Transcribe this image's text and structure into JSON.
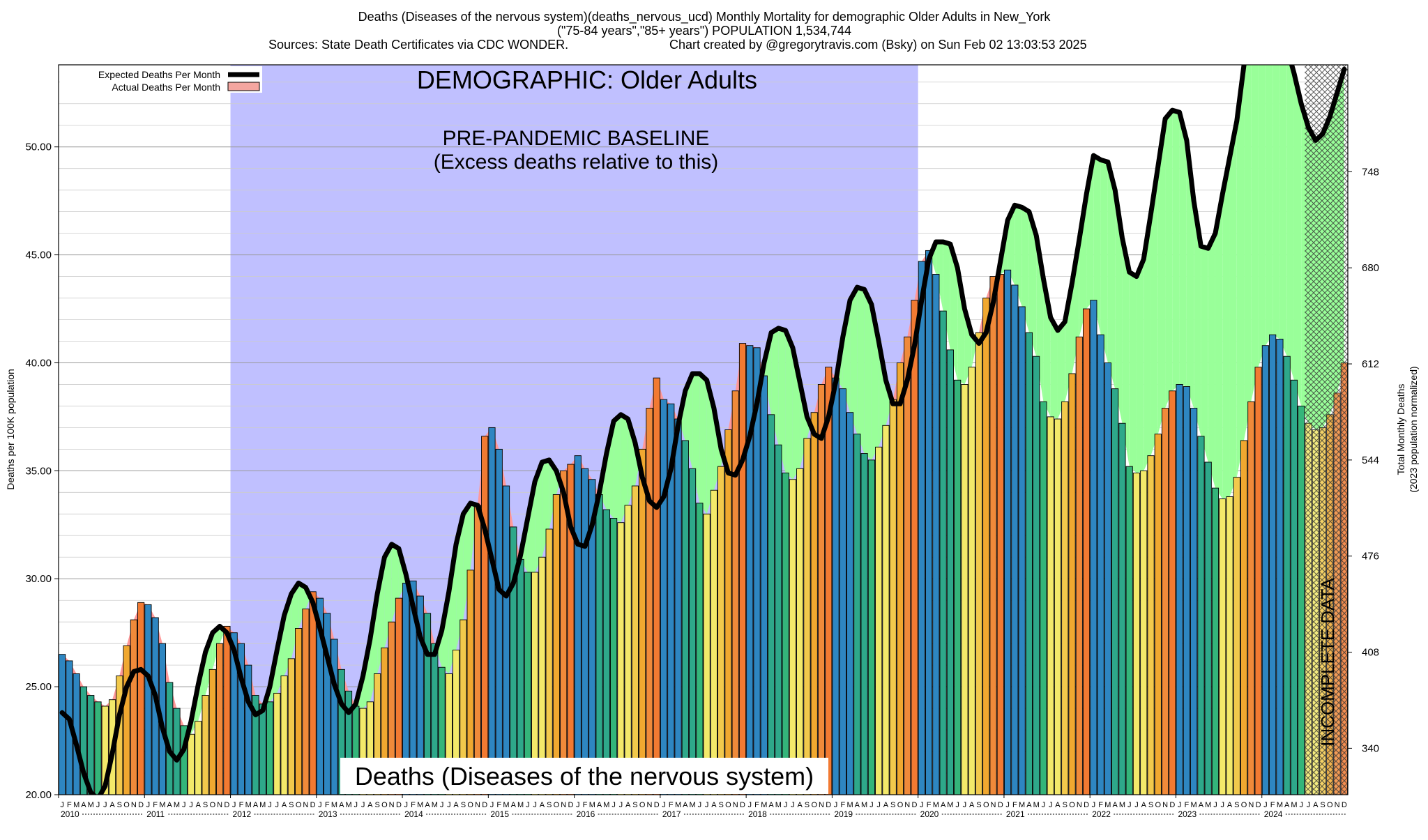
{
  "header": {
    "title_line1": "Deaths (Diseases of the nervous system)(deaths_nervous_ucd) Monthly Mortality for demographic Older Adults in New_York",
    "title_line2": "(\"75-84 years\",\"85+ years\") POPULATION 1,534,744",
    "sources": "Sources: State Death Certificates via CDC WONDER.",
    "credit": "Chart created by @gregorytravis.com (Bsky) on Sun Feb 02 13:03:53 2025"
  },
  "annotations": {
    "demographic": "DEMOGRAPHIC: Older Adults",
    "baseline_line1": "PRE-PANDEMIC BASELINE",
    "baseline_line2": "(Excess deaths relative to this)",
    "cause_label": "Deaths (Diseases of the nervous system)",
    "incomplete": "INCOMPLETE DATA"
  },
  "legend": {
    "expected": "Expected Deaths Per Month",
    "actual": "Actual Deaths Per Month"
  },
  "chart_data": {
    "type": "bar",
    "ylabel": "Deaths per 100K population",
    "y2label_line1": "Total Monthly Deaths",
    "y2label_line2": "(2023 population normalized)",
    "ylim": [
      20.0,
      53.8
    ],
    "yticks": [
      "20.00",
      "25.00",
      "30.00",
      "35.00",
      "40.00",
      "45.00",
      "50.00"
    ],
    "y2ticks": [
      {
        "label": "340",
        "value": 22.15
      },
      {
        "label": "408",
        "value": 26.6
      },
      {
        "label": "476",
        "value": 31.05
      },
      {
        "label": "544",
        "value": 35.5
      },
      {
        "label": "612",
        "value": 39.95
      },
      {
        "label": "680",
        "value": 44.4
      },
      {
        "label": "748",
        "value": 48.85
      }
    ],
    "month_letters": [
      "J",
      "F",
      "M",
      "A",
      "M",
      "J",
      "J",
      "A",
      "S",
      "O",
      "N",
      "D"
    ],
    "years": [
      "2010",
      "2011",
      "2012",
      "2013",
      "2014",
      "2015",
      "2016",
      "2017",
      "2018",
      "2019",
      "2020",
      "2021",
      "2022",
      "2023",
      "2024"
    ],
    "start": "2010-01",
    "baseline_period": {
      "start": "2012-01",
      "end": "2019-12"
    },
    "incomplete_period": {
      "start": "2024-07",
      "end": "2024-12"
    },
    "actual": [
      26.5,
      26.2,
      25.6,
      25.0,
      24.6,
      24.3,
      24.1,
      24.4,
      25.5,
      26.9,
      28.1,
      28.9,
      28.8,
      28.2,
      27.0,
      25.2,
      24.0,
      23.2,
      22.8,
      23.4,
      24.6,
      25.8,
      27.0,
      27.8,
      27.5,
      27.0,
      26.0,
      24.6,
      24.2,
      24.3,
      24.7,
      25.5,
      26.3,
      27.7,
      28.6,
      29.4,
      29.1,
      28.4,
      27.2,
      25.8,
      24.8,
      24.1,
      24.0,
      24.3,
      25.6,
      26.8,
      28.0,
      29.1,
      29.8,
      29.9,
      29.2,
      28.4,
      27.0,
      25.9,
      25.6,
      26.7,
      28.1,
      30.4,
      33.4,
      36.6,
      37.0,
      36.0,
      34.3,
      32.4,
      30.9,
      30.3,
      30.3,
      31.0,
      32.3,
      33.9,
      35.0,
      35.3,
      35.7,
      35.1,
      34.6,
      33.9,
      33.2,
      32.8,
      32.6,
      33.4,
      34.3,
      36.0,
      37.9,
      39.3,
      38.3,
      38.1,
      37.4,
      36.4,
      35.1,
      33.5,
      33.0,
      34.1,
      35.2,
      36.9,
      38.7,
      40.9,
      40.8,
      40.7,
      39.4,
      37.6,
      36.2,
      34.9,
      34.6,
      35.1,
      36.5,
      37.7,
      39.0,
      39.8,
      39.3,
      38.8,
      37.7,
      36.7,
      35.8,
      35.5,
      36.1,
      37.1,
      38.3,
      40.0,
      41.2,
      42.9,
      44.7,
      45.2,
      44.1,
      42.4,
      40.6,
      39.2,
      39.0,
      39.8,
      41.4,
      43.0,
      44.0,
      44.1,
      44.3,
      43.6,
      42.6,
      41.4,
      40.3,
      38.2,
      37.5,
      37.4,
      38.2,
      39.5,
      41.2,
      42.5,
      42.9,
      41.3,
      40.0,
      38.8,
      37.2,
      35.2,
      34.9,
      35.0,
      35.7,
      36.7,
      37.9,
      38.7,
      39.0,
      38.9,
      37.9,
      36.6,
      35.4,
      34.2,
      33.7,
      33.8,
      34.7,
      36.4,
      38.2,
      39.8,
      40.8,
      41.3,
      41.1,
      40.3,
      39.2,
      38.0,
      37.2,
      36.9,
      37.0,
      37.6,
      38.6,
      40.0
    ],
    "expected": [
      23.8,
      23.5,
      22.3,
      21.0,
      20.1,
      19.8,
      20.4,
      21.9,
      23.7,
      25.0,
      25.7,
      25.8,
      25.5,
      24.6,
      23.1,
      22.0,
      21.6,
      22.1,
      23.4,
      25.1,
      26.6,
      27.5,
      27.8,
      27.5,
      26.7,
      25.4,
      24.3,
      23.7,
      23.9,
      25.0,
      26.7,
      28.3,
      29.3,
      29.8,
      29.6,
      28.9,
      27.7,
      26.4,
      25.1,
      24.2,
      23.8,
      24.2,
      25.5,
      27.2,
      29.3,
      31.0,
      31.6,
      31.4,
      30.2,
      28.7,
      27.3,
      26.5,
      26.5,
      27.6,
      29.4,
      31.6,
      33.0,
      33.5,
      33.4,
      32.3,
      30.9,
      29.5,
      29.2,
      29.8,
      31.1,
      32.8,
      34.5,
      35.4,
      35.5,
      35.0,
      34.0,
      32.4,
      31.6,
      31.5,
      32.5,
      34.0,
      35.8,
      37.3,
      37.6,
      37.4,
      36.3,
      34.7,
      33.6,
      33.3,
      33.8,
      35.1,
      37.1,
      38.7,
      39.5,
      39.5,
      39.2,
      37.9,
      36.0,
      34.9,
      34.8,
      35.5,
      36.6,
      38.1,
      40.0,
      41.4,
      41.6,
      41.5,
      40.7,
      39.1,
      37.5,
      36.7,
      36.5,
      37.5,
      39.1,
      41.2,
      42.9,
      43.5,
      43.4,
      42.7,
      41.0,
      39.2,
      38.1,
      38.1,
      39.2,
      40.8,
      42.9,
      44.8,
      45.6,
      45.6,
      45.5,
      44.4,
      42.5,
      41.3,
      40.9,
      41.4,
      42.8,
      44.7,
      46.6,
      47.3,
      47.2,
      47.0,
      45.9,
      43.9,
      42.1,
      41.5,
      41.9,
      43.7,
      45.7,
      47.8,
      49.6,
      49.4,
      49.3,
      48.0,
      45.8,
      44.2,
      44.0,
      44.8,
      46.9,
      49.1,
      51.3,
      51.7,
      51.6,
      50.3,
      47.5,
      45.4,
      45.3,
      46.0,
      47.8,
      49.5,
      51.2,
      53.8,
      54.6,
      55.2,
      55.4,
      55.5,
      55.3,
      54.6,
      53.4,
      52.0,
      50.9,
      50.3,
      50.6,
      51.4,
      52.5,
      53.6
    ],
    "colors": {
      "baseline_shade": "#c0c0ff",
      "excess_fill": "#99ff99",
      "deficit_fill": "#ff9999",
      "expected_line": "#000000",
      "legend_actual": "#f4a6a0",
      "bar_palette": [
        "#2e86c1",
        "#2e86c1",
        "#2e86c1",
        "#2ea88a",
        "#2ea88a",
        "#34b57a",
        "#f3e96a",
        "#f3e96a",
        "#f2c94c",
        "#f0a830",
        "#f08a3a",
        "#f27a32"
      ]
    }
  }
}
